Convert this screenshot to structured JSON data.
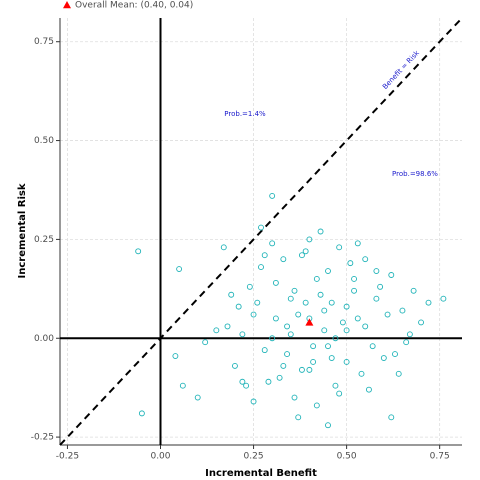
{
  "chart_data": {
    "type": "scatter",
    "xlabel": "Incremental Benefit",
    "ylabel": "Incremental Risk",
    "legend": "Overall Mean: (0.40, 0.04)",
    "legend_position": "top-left",
    "annotations": [
      "Prob.=1.4%",
      "Prob.=98.6%",
      "Benefit = Risk"
    ],
    "color": "#1fb3b8",
    "mean": {
      "x": 0.4,
      "y": 0.04,
      "color": "#ff0000"
    },
    "xlim": [
      -0.27,
      0.81
    ],
    "ylim": [
      -0.27,
      0.81
    ],
    "xticks": [
      -0.25,
      {
        "value": 0,
        "label": "0.00"
      },
      0.25,
      {
        "value": 0.5,
        "label": "0.50"
      },
      0.75
    ],
    "yticks": [
      -0.25,
      {
        "value": 0,
        "label": "0.00"
      },
      0.25,
      {
        "value": 0.5,
        "label": "0.50"
      },
      0.75
    ],
    "grid": true,
    "x": [
      0.4,
      0.35,
      0.45,
      0.3,
      0.5,
      0.42,
      0.38,
      0.55,
      0.25,
      0.6,
      0.33,
      0.47,
      0.28,
      0.52,
      0.44,
      0.36,
      0.58,
      0.22,
      0.65,
      0.41,
      0.31,
      0.49,
      0.27,
      0.54,
      0.39,
      0.46,
      0.34,
      0.62,
      0.2,
      0.57,
      0.43,
      0.37,
      0.51,
      0.29,
      0.48,
      0.24,
      0.66,
      0.18,
      0.53,
      0.4,
      0.32,
      0.45,
      0.26,
      0.59,
      0.35,
      0.5,
      0.21,
      0.63,
      0.42,
      0.38,
      0.15,
      0.7,
      0.44,
      0.3,
      0.56,
      0.47,
      0.23,
      0.61,
      0.36,
      0.52,
      0.27,
      0.41,
      0.33,
      0.48,
      0.12,
      0.68,
      0.39,
      0.55,
      0.19,
      0.64,
      0.46,
      0.31,
      0.43,
      0.25,
      0.58,
      0.1,
      0.72,
      0.37,
      0.5,
      0.28,
      -0.06,
      -0.05,
      0.05,
      0.3,
      0.76,
      0.04,
      0.06,
      0.17,
      0.62,
      0.45,
      0.34,
      0.53,
      0.4,
      0.22,
      0.67
    ],
    "y": [
      0.05,
      0.1,
      -0.02,
      0.0,
      0.08,
      0.15,
      -0.08,
      0.03,
      0.06,
      -0.05,
      0.2,
      -0.12,
      -0.03,
      0.12,
      0.02,
      -0.15,
      0.1,
      0.01,
      0.07,
      -0.06,
      0.14,
      0.04,
      0.18,
      -0.09,
      0.22,
      0.09,
      -0.04,
      0.16,
      -0.07,
      -0.02,
      0.11,
      0.06,
      0.19,
      -0.11,
      -0.14,
      0.13,
      -0.01,
      0.03,
      0.05,
      0.25,
      -0.1,
      0.17,
      0.09,
      0.13,
      0.01,
      -0.06,
      0.08,
      -0.04,
      -0.17,
      0.21,
      0.02,
      0.04,
      0.07,
      0.24,
      -0.13,
      0.0,
      -0.12,
      0.06,
      0.12,
      0.15,
      0.28,
      -0.02,
      -0.07,
      0.23,
      -0.01,
      0.12,
      0.09,
      0.2,
      0.11,
      -0.09,
      -0.05,
      0.05,
      0.27,
      -0.16,
      0.17,
      -0.15,
      0.09,
      -0.2,
      0.02,
      0.21,
      0.22,
      -0.19,
      0.175,
      0.36,
      0.1,
      -0.045,
      -0.12,
      0.23,
      -0.2,
      -0.22,
      0.03,
      0.24,
      -0.08,
      -0.11,
      0.01
    ]
  }
}
